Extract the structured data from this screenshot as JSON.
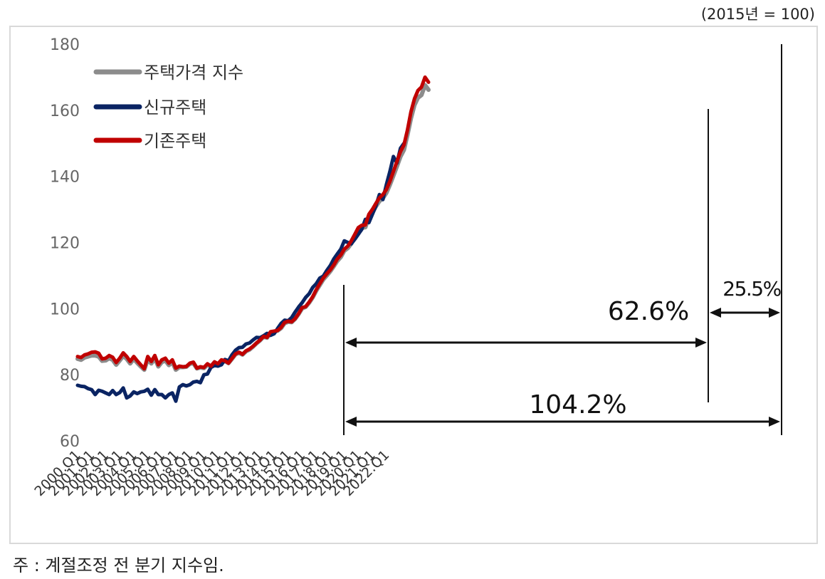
{
  "unit_label": "(2015년 = 100)",
  "note": "주 : 계절조정 전 분기 지수임.",
  "legend": [
    {
      "key": "housing_index",
      "label": "주택가격 지수"
    },
    {
      "key": "new_housing",
      "label": "신규주택"
    },
    {
      "key": "existing_housing",
      "label": "기존주택"
    }
  ],
  "annotations": {
    "span_2008_2022": "104.2%",
    "span_2008_2019": "62.6%",
    "span_2019_2022": "25.5%"
  },
  "colors": {
    "housing_index": "#8c8c8c",
    "new_housing": "#0a2463",
    "existing_housing": "#c00000",
    "axis_text": "#666666",
    "frame": "#d9d9d9"
  },
  "chart_data": {
    "type": "line",
    "title": "",
    "xlabel": "",
    "ylabel": "",
    "ylim": [
      60,
      180
    ],
    "yticks": [
      60,
      80,
      100,
      120,
      140,
      160,
      180
    ],
    "x_tick_labels": [
      "2000.Q1",
      "2001.Q1",
      "2002.Q1",
      "2003.Q1",
      "2004.Q1",
      "2005.Q1",
      "2006.Q1",
      "2007.Q1",
      "2008.Q1",
      "2009.Q1",
      "2010.Q1",
      "2011.Q1",
      "2012.Q1",
      "2013.Q1",
      "2014.Q1",
      "2015.Q1",
      "2016.Q1",
      "2017.Q1",
      "2018.Q1",
      "2019.Q1",
      "2020.Q1",
      "2021.Q1",
      "2022.Q1"
    ],
    "x_start": "2000.Q1",
    "x_end": "2022.Q4",
    "grid": false,
    "legend_position": "top-left",
    "series": [
      {
        "name": "기존주택",
        "key": "existing_housing",
        "values": [
          85.5,
          85.2,
          86.0,
          86.3,
          86.8,
          86.9,
          86.5,
          84.8,
          85.0,
          85.8,
          85.3,
          83.7,
          85.0,
          86.6,
          85.5,
          84.0,
          85.5,
          84.2,
          83.0,
          81.8,
          85.5,
          84.0,
          85.8,
          83.0,
          84.5,
          85.0,
          83.5,
          84.5,
          82.0,
          82.6,
          82.4,
          82.5,
          83.5,
          83.8,
          82.0,
          82.4,
          82.2,
          83.3,
          82.6,
          83.9,
          83.3,
          84.5,
          84.2,
          83.5,
          84.9,
          86.3,
          86.8,
          86.2,
          87.2,
          87.8,
          88.6,
          89.6,
          90.5,
          91.6,
          91.3,
          93.0,
          93.2,
          93.4,
          94.3,
          95.8,
          96.2,
          96.0,
          97.0,
          98.5,
          100.3,
          100.6,
          102.0,
          103.6,
          105.7,
          107.5,
          109.2,
          110.5,
          111.7,
          113.2,
          115.0,
          116.2,
          118.0,
          118.9,
          120.5,
          122.5,
          124.5,
          125.2,
          125.3,
          128.5,
          130.0,
          131.8,
          133.5,
          134.5,
          136.0,
          138.5,
          141.5,
          144.5,
          147.5,
          149.5,
          154.0,
          159.5,
          163.5,
          166.0,
          167.0,
          170.0,
          168.5
        ],
        "start_index": 0
      },
      {
        "name": "신규주택",
        "key": "new_housing",
        "values": [
          76.8,
          76.5,
          76.4,
          75.8,
          75.5,
          74.0,
          75.3,
          75.0,
          74.5,
          74.0,
          75.2,
          74.0,
          74.6,
          76.0,
          73.0,
          73.6,
          74.8,
          74.3,
          74.8,
          75.0,
          75.6,
          73.8,
          75.5,
          74.0,
          74.0,
          73.0,
          74.0,
          74.5,
          72.0,
          76.3,
          77.0,
          76.6,
          77.0,
          77.8,
          78.0,
          77.6,
          80.0,
          80.2,
          82.2,
          82.8,
          82.6,
          83.0,
          84.6,
          84.2,
          86.0,
          87.4,
          88.2,
          88.3,
          89.3,
          89.6,
          90.5,
          91.3,
          91.2,
          91.8,
          92.5,
          91.9,
          92.4,
          94.0,
          95.5,
          96.5,
          96.3,
          97.3,
          99.0,
          100.5,
          101.8,
          103.4,
          104.5,
          106.4,
          107.5,
          109.2,
          109.8,
          111.5,
          113.0,
          115.0,
          116.5,
          118.0,
          120.5,
          120.0,
          119.6,
          121.0,
          122.5,
          124.0,
          127.0,
          126.0,
          128.5,
          131.0,
          134.5,
          133.0,
          137.5,
          141.5,
          146.0,
          144.0,
          148.5,
          150.0
        ],
        "start_index": 0
      },
      {
        "name": "주택가격 지수",
        "key": "housing_index",
        "values": [
          84.8,
          84.5,
          85.2,
          85.5,
          85.8,
          85.8,
          85.5,
          84.2,
          84.3,
          85.0,
          84.5,
          83.0,
          84.3,
          85.7,
          84.8,
          83.4,
          84.8,
          83.6,
          82.5,
          81.5,
          84.7,
          83.4,
          85.0,
          82.5,
          83.8,
          84.3,
          82.9,
          83.8,
          81.5,
          82.3,
          82.3,
          82.4,
          83.3,
          83.5,
          81.9,
          82.2,
          82.0,
          83.0,
          82.5,
          83.7,
          83.2,
          84.3,
          84.1,
          83.5,
          84.8,
          86.2,
          86.6,
          86.1,
          87.1,
          87.6,
          88.5,
          89.5,
          90.4,
          91.5,
          91.2,
          92.8,
          93.0,
          93.3,
          94.1,
          95.6,
          96.0,
          95.9,
          96.9,
          98.4,
          100.1,
          100.5,
          101.8,
          103.4,
          105.4,
          107.1,
          108.8,
          110.0,
          111.3,
          112.8,
          114.4,
          115.6,
          117.5,
          118.3,
          119.7,
          121.8,
          123.6,
          124.4,
          124.6,
          127.6,
          129.0,
          130.9,
          132.5,
          133.4,
          135.0,
          137.5,
          140.2,
          143.0,
          146.0,
          148.0,
          152.5,
          157.5,
          161.6,
          163.8,
          164.6,
          167.6,
          166.2
        ],
        "start_index": 0
      }
    ]
  }
}
